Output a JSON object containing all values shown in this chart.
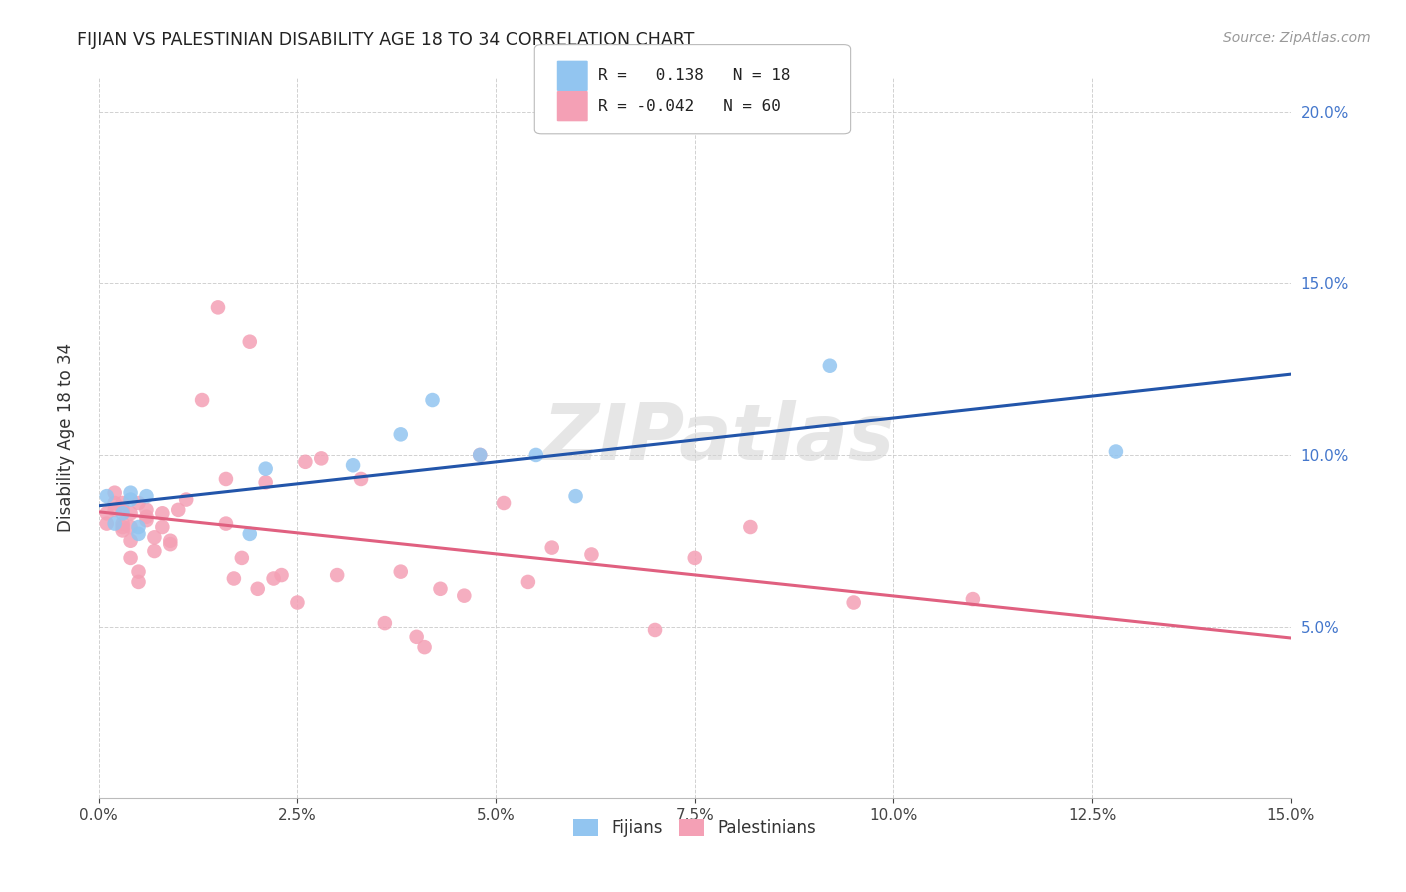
{
  "title": "FIJIAN VS PALESTINIAN DISABILITY AGE 18 TO 34 CORRELATION CHART",
  "source": "Source: ZipAtlas.com",
  "ylabel": "Disability Age 18 to 34",
  "xlim": [
    0.0,
    0.15
  ],
  "ylim": [
    0.0,
    0.21
  ],
  "xtick_positions": [
    0.0,
    0.025,
    0.05,
    0.075,
    0.1,
    0.125,
    0.15
  ],
  "xtick_labels": [
    "0.0%",
    "2.5%",
    "5.0%",
    "7.5%",
    "10.0%",
    "12.5%",
    "15.0%"
  ],
  "ytick_positions": [
    0.05,
    0.1,
    0.15,
    0.2
  ],
  "ytick_labels": [
    "5.0%",
    "10.0%",
    "15.0%",
    "20.0%"
  ],
  "legend_fijian_R": "0.138",
  "legend_fijian_N": "18",
  "legend_palestinian_R": "-0.042",
  "legend_palestinian_N": "60",
  "fijian_color": "#92c5f0",
  "palestinian_color": "#f4a0b5",
  "fijian_line_color": "#2255aa",
  "palestinian_line_color": "#e06080",
  "watermark": "ZIPatlas",
  "fijian_x": [
    0.001,
    0.002,
    0.003,
    0.004,
    0.004,
    0.005,
    0.005,
    0.006,
    0.019,
    0.021,
    0.032,
    0.038,
    0.042,
    0.048,
    0.055,
    0.06,
    0.092,
    0.128
  ],
  "fijian_y": [
    0.088,
    0.08,
    0.083,
    0.087,
    0.089,
    0.079,
    0.077,
    0.088,
    0.077,
    0.096,
    0.097,
    0.106,
    0.116,
    0.1,
    0.1,
    0.088,
    0.126,
    0.101
  ],
  "palestinian_x": [
    0.001,
    0.001,
    0.002,
    0.002,
    0.002,
    0.003,
    0.003,
    0.003,
    0.003,
    0.003,
    0.004,
    0.004,
    0.004,
    0.004,
    0.005,
    0.005,
    0.005,
    0.006,
    0.006,
    0.006,
    0.007,
    0.007,
    0.008,
    0.008,
    0.009,
    0.009,
    0.01,
    0.011,
    0.013,
    0.015,
    0.016,
    0.016,
    0.017,
    0.018,
    0.019,
    0.02,
    0.021,
    0.022,
    0.023,
    0.025,
    0.026,
    0.028,
    0.03,
    0.033,
    0.036,
    0.038,
    0.04,
    0.041,
    0.043,
    0.046,
    0.048,
    0.051,
    0.054,
    0.057,
    0.062,
    0.07,
    0.075,
    0.082,
    0.095,
    0.11
  ],
  "palestinian_y": [
    0.083,
    0.08,
    0.086,
    0.084,
    0.089,
    0.086,
    0.084,
    0.08,
    0.079,
    0.078,
    0.079,
    0.083,
    0.075,
    0.07,
    0.066,
    0.063,
    0.086,
    0.084,
    0.082,
    0.081,
    0.076,
    0.072,
    0.079,
    0.083,
    0.075,
    0.074,
    0.084,
    0.087,
    0.116,
    0.143,
    0.093,
    0.08,
    0.064,
    0.07,
    0.133,
    0.061,
    0.092,
    0.064,
    0.065,
    0.057,
    0.098,
    0.099,
    0.065,
    0.093,
    0.051,
    0.066,
    0.047,
    0.044,
    0.061,
    0.059,
    0.1,
    0.086,
    0.063,
    0.073,
    0.071,
    0.049,
    0.07,
    0.079,
    0.057,
    0.058
  ]
}
